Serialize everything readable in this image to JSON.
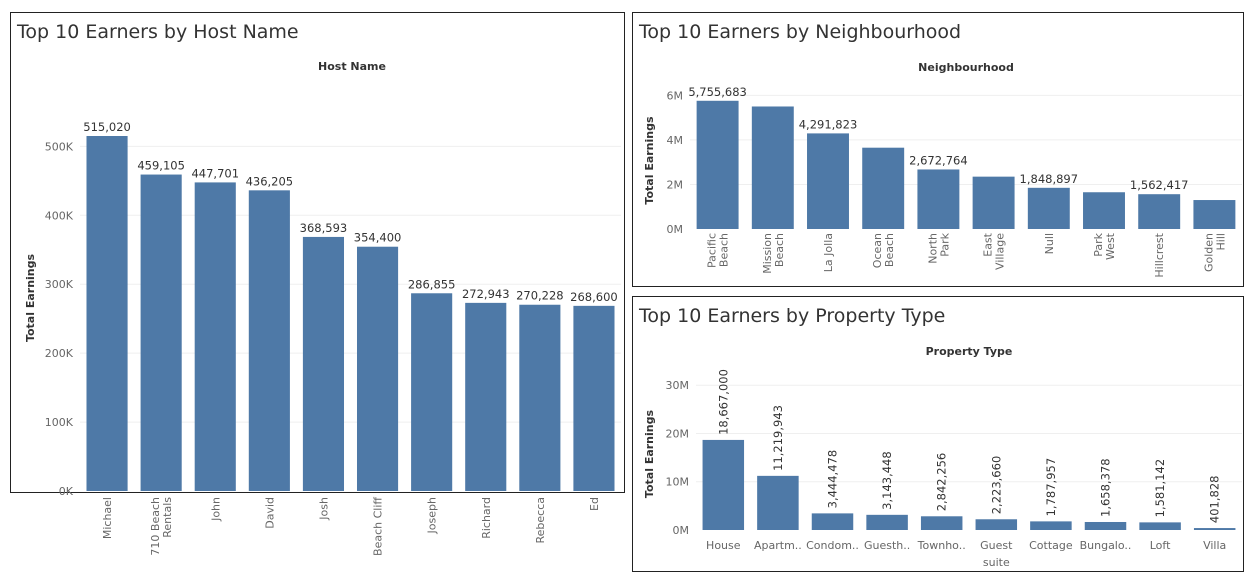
{
  "charts": {
    "host": {
      "panel_title": "Top 10 Earners by Host Name",
      "header": "Host Name",
      "ylabel": "Total Earnings",
      "ticks": [
        "0K",
        "100K",
        "200K",
        "300K",
        "400K",
        "500K"
      ],
      "labels": [
        "515,020",
        "459,105",
        "447,701",
        "436,205",
        "368,593",
        "354,400",
        "286,855",
        "272,943",
        "270,228",
        "268,600"
      ],
      "cats": [
        [
          "Michael"
        ],
        [
          "710 Beach",
          "Rentals"
        ],
        [
          "John"
        ],
        [
          "David"
        ],
        [
          "Josh"
        ],
        [
          "Beach Cliff"
        ],
        [
          "Joseph"
        ],
        [
          "Richard"
        ],
        [
          "Rebecca"
        ],
        [
          "Ed"
        ]
      ]
    },
    "hood": {
      "panel_title": "Top 10 Earners by Neighbourhood",
      "header": "Neighbourhood",
      "ylabel": "Total Earnings",
      "ticks": [
        "0M",
        "2M",
        "4M",
        "6M"
      ],
      "labels": [
        "5,755,683",
        "",
        "4,291,823",
        "",
        "2,672,764",
        "",
        "1,848,897",
        "",
        "1,562,417",
        ""
      ],
      "cats": [
        [
          "Pacific",
          "Beach"
        ],
        [
          "Mission",
          "Beach"
        ],
        [
          "La Jolla"
        ],
        [
          "Ocean",
          "Beach"
        ],
        [
          "North",
          "Park"
        ],
        [
          "East",
          "Village"
        ],
        [
          "Null"
        ],
        [
          "Park",
          "West"
        ],
        [
          "Hillcrest"
        ],
        [
          "Golden",
          "Hill"
        ]
      ]
    },
    "prop": {
      "panel_title": "Top 10 Earners by Property Type",
      "header": "Property Type",
      "ylabel": "Total Earnings",
      "ticks": [
        "0M",
        "10M",
        "20M",
        "30M"
      ],
      "labels": [
        "18,667,000",
        "11,219,943",
        "3,444,478",
        "3,143,448",
        "2,842,256",
        "2,223,660",
        "1,787,957",
        "1,658,378",
        "1,581,142",
        "401,828"
      ],
      "cats": [
        [
          "House"
        ],
        [
          "Apartm.."
        ],
        [
          "Condom.."
        ],
        [
          "Guesth.."
        ],
        [
          "Townho.."
        ],
        [
          "Guest",
          "suite"
        ],
        [
          "Cottage"
        ],
        [
          "Bungalo.."
        ],
        [
          "Loft"
        ],
        [
          "Villa"
        ]
      ]
    }
  },
  "chart_data": [
    {
      "type": "bar",
      "title": "Top 10 Earners by Host Name",
      "xlabel": "Host Name",
      "ylabel": "Total Earnings",
      "categories": [
        "Michael",
        "710 Beach Rentals",
        "John",
        "David",
        "Josh",
        "Beach Cliff",
        "Joseph",
        "Richard",
        "Rebecca",
        "Ed"
      ],
      "values": [
        515020,
        459105,
        447701,
        436205,
        368593,
        354400,
        286855,
        272943,
        270228,
        268600
      ],
      "ylim": [
        0,
        500000
      ],
      "color": "#4e79a7",
      "grid": true
    },
    {
      "type": "bar",
      "title": "Top 10 Earners by Neighbourhood",
      "xlabel": "Neighbourhood",
      "ylabel": "Total Earnings",
      "categories": [
        "Pacific Beach",
        "Mission Beach",
        "La Jolla",
        "Ocean Beach",
        "North Park",
        "East Village",
        "Null",
        "Park West",
        "Hillcrest",
        "Golden Hill"
      ],
      "values": [
        5755683,
        5500000,
        4291823,
        3650000,
        2672764,
        2350000,
        1848897,
        1650000,
        1562417,
        1300000
      ],
      "ylim": [
        0,
        6000000
      ],
      "color": "#4e79a7",
      "grid": true
    },
    {
      "type": "bar",
      "title": "Top 10 Earners by Property Type",
      "xlabel": "Property Type",
      "ylabel": "Total Earnings",
      "categories": [
        "House",
        "Apartm..",
        "Condom..",
        "Guesth..",
        "Townho..",
        "Guest suite",
        "Cottage",
        "Bungalo..",
        "Loft",
        "Villa"
      ],
      "values": [
        18667000,
        11219943,
        3444478,
        3143448,
        2842256,
        2223660,
        1787957,
        1658378,
        1581142,
        401828
      ],
      "ylim": [
        0,
        30000000
      ],
      "color": "#4e79a7",
      "grid": true
    }
  ]
}
